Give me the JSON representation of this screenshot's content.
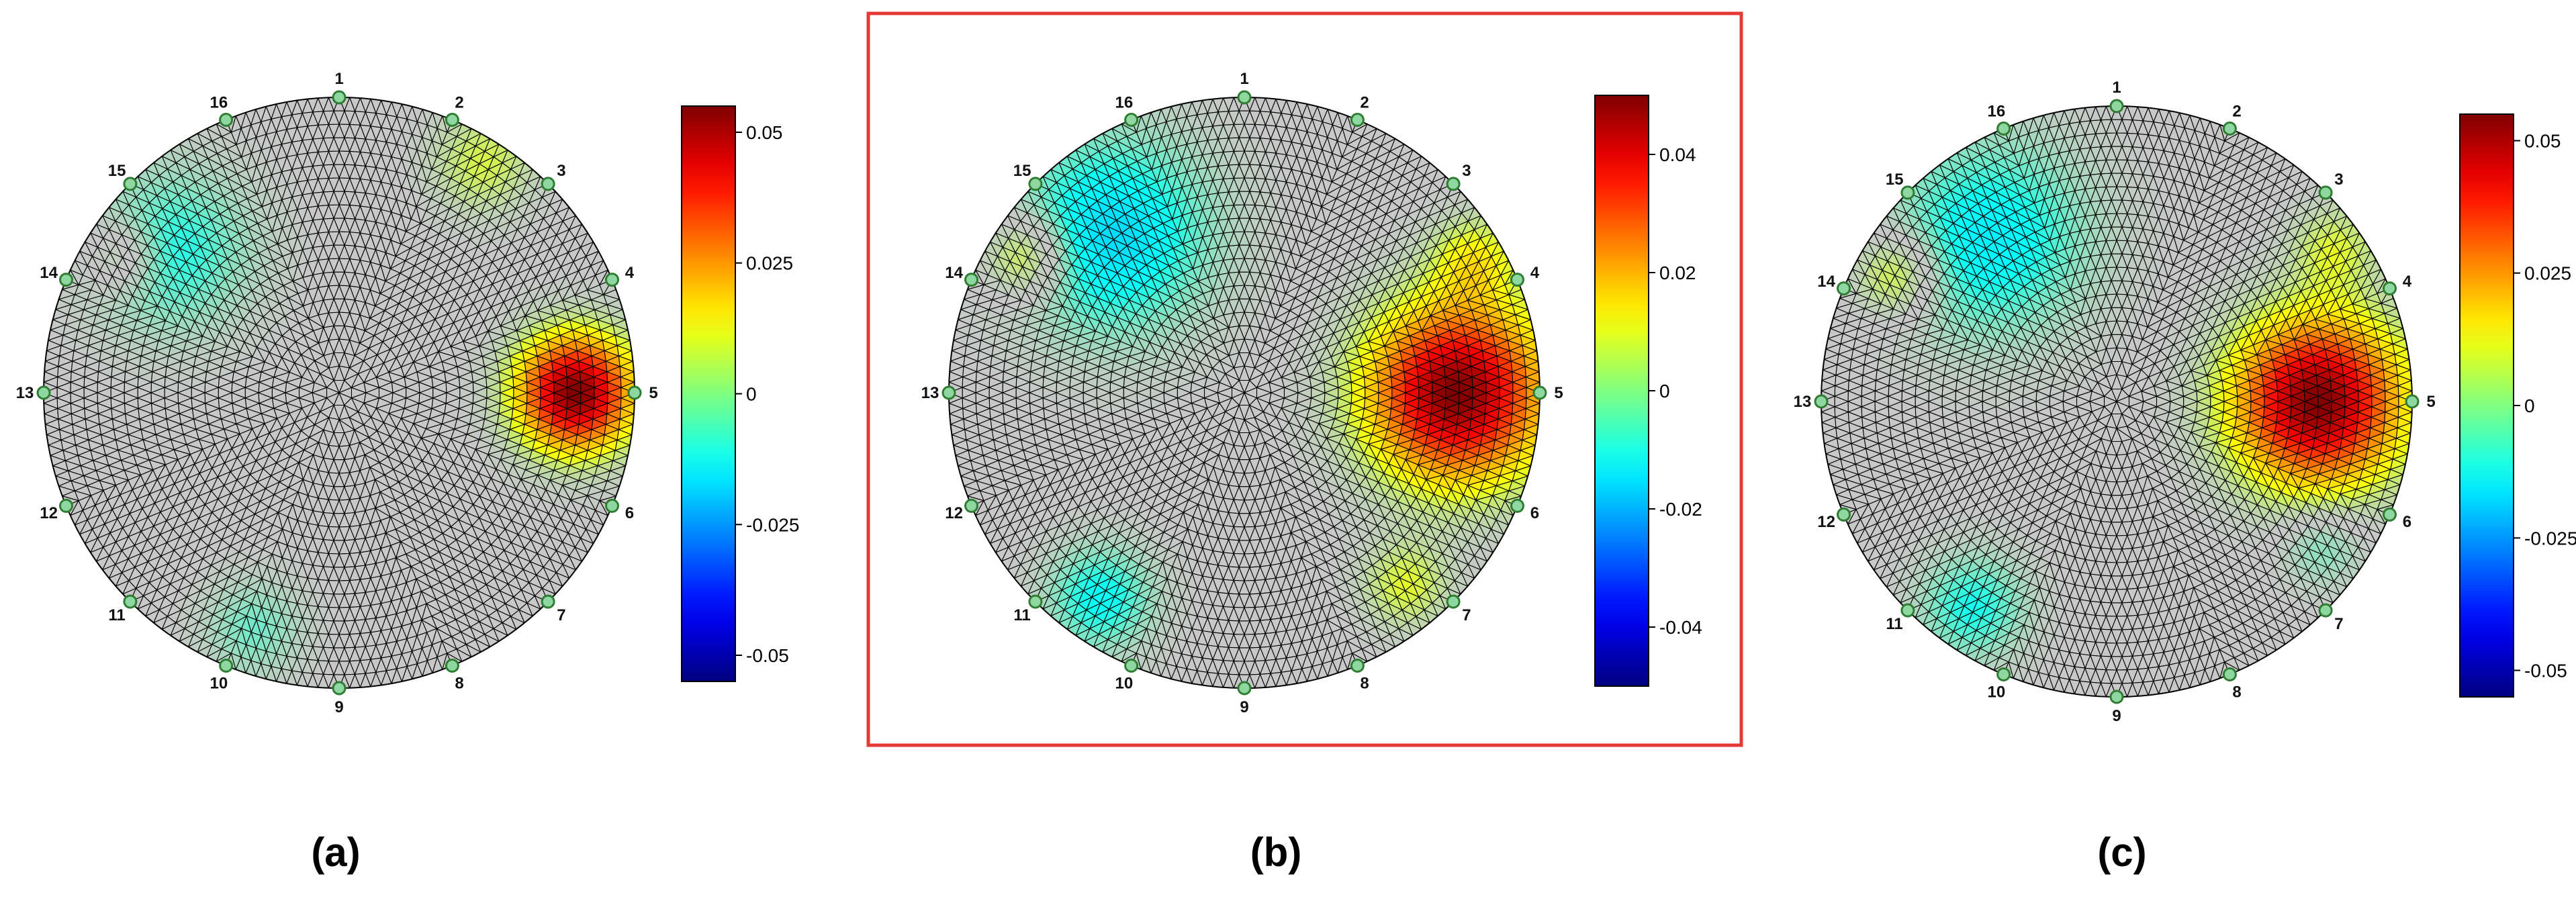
{
  "panels": [
    {
      "caption": "(a)",
      "highlighted": false,
      "electrodes": [
        "1",
        "2",
        "3",
        "4",
        "5",
        "6",
        "7",
        "8",
        "9",
        "10",
        "11",
        "12",
        "13",
        "14",
        "15",
        "16"
      ],
      "colorbar": {
        "ticks": [
          "0.05",
          "0.025",
          "0",
          "-0.025",
          "-0.05"
        ],
        "range": [
          -0.055,
          0.055
        ]
      },
      "blobs": [
        {
          "angle_deg": 0,
          "radius": 0.8,
          "amplitude": 0.055,
          "spread": 0.13
        },
        {
          "angle_deg": 140,
          "radius": 0.75,
          "amplitude": -0.012,
          "spread": 0.2
        },
        {
          "angle_deg": 58,
          "radius": 0.92,
          "amplitude": 0.01,
          "spread": 0.12
        },
        {
          "angle_deg": 148,
          "radius": 0.87,
          "amplitude": 0.01,
          "spread": 0.09
        },
        {
          "angle_deg": 250,
          "radius": 0.85,
          "amplitude": -0.008,
          "spread": 0.12
        }
      ]
    },
    {
      "caption": "(b)",
      "highlighted": true,
      "electrodes": [
        "1",
        "2",
        "3",
        "4",
        "5",
        "6",
        "7",
        "8",
        "9",
        "10",
        "11",
        "12",
        "13",
        "14",
        "15",
        "16"
      ],
      "colorbar": {
        "ticks": [
          "0.04",
          "0.02",
          "0",
          "-0.02",
          "-0.04"
        ],
        "range": [
          -0.05,
          0.05
        ]
      },
      "blobs": [
        {
          "angle_deg": 0,
          "radius": 0.72,
          "amplitude": 0.05,
          "spread": 0.2
        },
        {
          "angle_deg": 130,
          "radius": 0.7,
          "amplitude": -0.016,
          "spread": 0.24
        },
        {
          "angle_deg": 148,
          "radius": 0.87,
          "amplitude": 0.014,
          "spread": 0.1
        },
        {
          "angle_deg": 30,
          "radius": 0.9,
          "amplitude": 0.012,
          "spread": 0.1
        },
        {
          "angle_deg": 235,
          "radius": 0.85,
          "amplitude": -0.012,
          "spread": 0.13
        },
        {
          "angle_deg": 310,
          "radius": 0.85,
          "amplitude": 0.01,
          "spread": 0.1
        }
      ]
    },
    {
      "caption": "(c)",
      "highlighted": false,
      "electrodes": [
        "1",
        "2",
        "3",
        "4",
        "5",
        "6",
        "7",
        "8",
        "9",
        "10",
        "11",
        "12",
        "13",
        "14",
        "15",
        "16"
      ],
      "colorbar": {
        "ticks": [
          "0.05",
          "0.025",
          "0",
          "-0.025",
          "-0.05"
        ],
        "range": [
          -0.055,
          0.055
        ]
      },
      "blobs": [
        {
          "angle_deg": 0,
          "radius": 0.68,
          "amplitude": 0.055,
          "spread": 0.19
        },
        {
          "angle_deg": 128,
          "radius": 0.7,
          "amplitude": -0.015,
          "spread": 0.24
        },
        {
          "angle_deg": 150,
          "radius": 0.86,
          "amplitude": 0.014,
          "spread": 0.1
        },
        {
          "angle_deg": 35,
          "radius": 0.9,
          "amplitude": 0.01,
          "spread": 0.1
        },
        {
          "angle_deg": 235,
          "radius": 0.85,
          "amplitude": -0.012,
          "spread": 0.13
        },
        {
          "angle_deg": 325,
          "radius": 0.85,
          "amplitude": -0.008,
          "spread": 0.1
        }
      ]
    }
  ],
  "colors": {
    "mesh_line": "#000000",
    "neutral_fill": "#c8c8c8",
    "highlight_box": "#e53935",
    "electrode_fill": "#8fd6a0",
    "electrode_stroke": "#2e7d32"
  }
}
